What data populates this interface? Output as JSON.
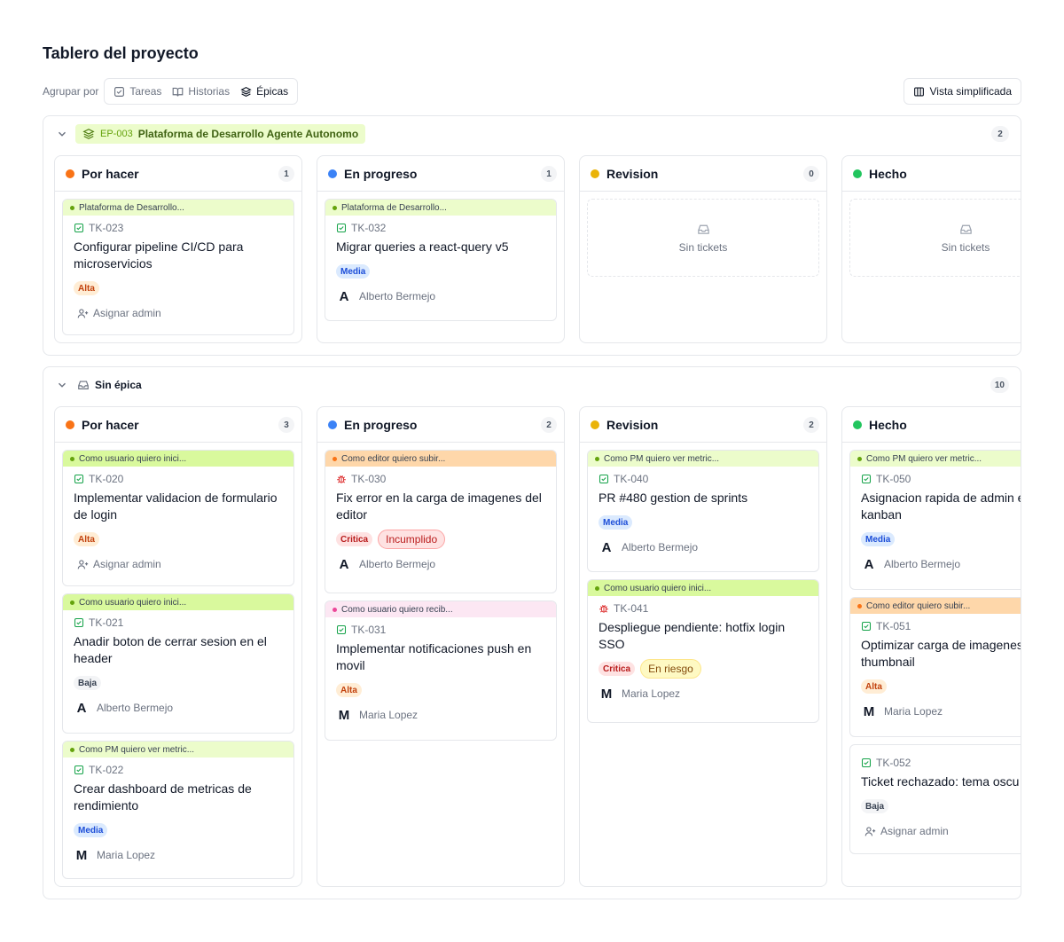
{
  "page": {
    "title": "Tablero del proyecto"
  },
  "toolbar": {
    "group_by_label": "Agrupar por",
    "options": [
      {
        "label": "Tareas",
        "icon": "checkbox-icon"
      },
      {
        "label": "Historias",
        "icon": "book-open-icon"
      },
      {
        "label": "Épicas",
        "icon": "layers-icon",
        "active": true
      }
    ],
    "view_button": "Vista simplificada"
  },
  "groups": [
    {
      "code": "EP-003",
      "name": "Plataforma de Desarrollo Agente Autonomo",
      "count": "2",
      "columns": [
        {
          "name": "Por hacer",
          "count": "1",
          "color": "#f97316",
          "cards": [
            {
              "epic": "Plataforma de Desarrollo...",
              "id": "TK-023",
              "title": [
                "Configurar pipeline CI/CD para",
                "microservicios"
              ],
              "priority": "Alta",
              "assign": "Asignar admin"
            }
          ]
        },
        {
          "name": "En progreso",
          "count": "1",
          "color": "#3b82f6",
          "cards": [
            {
              "epic": "Plataforma de Desarrollo...",
              "id": "TK-032",
              "title": [
                "Migrar queries a react-query v5"
              ],
              "priority": "Media",
              "avatar": "A",
              "assignee": "Alberto Bermejo"
            }
          ]
        },
        {
          "name": "Revision",
          "count": "0",
          "color": "#eab308",
          "empty": "Sin tickets"
        },
        {
          "name": "Hecho",
          "count": "",
          "color": "#22c55e",
          "empty": "Sin tickets"
        }
      ]
    },
    {
      "name": "Sin épica",
      "count": "10",
      "columns": [
        {
          "name": "Por hacer",
          "count": "3",
          "color": "#f97316",
          "cards": [
            {
              "epic": "Como usuario quiero inici...",
              "id": "TK-020",
              "title": [
                "Implementar validacion de formulario",
                "de login"
              ],
              "priority": "Alta",
              "assign": "Asignar admin"
            },
            {
              "epic": "Como usuario quiero inici...",
              "id": "TK-021",
              "title": [
                "Anadir boton de cerrar sesion en el",
                "header"
              ],
              "priority": "Baja",
              "avatar": "A",
              "assignee": "Alberto Bermejo"
            },
            {
              "epic": "Como PM quiero ver metric...",
              "id": "TK-022",
              "title": [
                "Crear dashboard de metricas de",
                "rendimiento"
              ],
              "priority": "Media",
              "avatar": "M",
              "assignee": "Maria Lopez"
            }
          ]
        },
        {
          "name": "En progreso",
          "count": "2",
          "color": "#3b82f6",
          "cards": [
            {
              "epic": "Como editor quiero subir...",
              "id": "TK-030",
              "title": [
                "Fix error en la carga de imagenes del",
                "editor"
              ],
              "priority": "Critica",
              "status": "Incumplido",
              "avatar": "A",
              "assignee": "Alberto Bermejo"
            },
            {
              "epic": "Como usuario quiero recib...",
              "id": "TK-031",
              "title": [
                "Implementar notificaciones push en",
                "movil"
              ],
              "priority": "Alta",
              "avatar": "M",
              "assignee": "Maria Lopez"
            }
          ]
        },
        {
          "name": "Revision",
          "count": "2",
          "color": "#eab308",
          "cards": [
            {
              "epic": "Como PM quiero ver metric...",
              "id": "TK-040",
              "title": [
                "PR #480 gestion de sprints"
              ],
              "priority": "Media",
              "avatar": "A",
              "assignee": "Alberto Bermejo"
            },
            {
              "epic": "Como usuario quiero inici...",
              "id": "TK-041",
              "title": [
                "Despliegue pendiente: hotfix login",
                "SSO"
              ],
              "priority": "Critica",
              "status": "En riesgo",
              "avatar": "M",
              "assignee": "Maria Lopez"
            }
          ]
        },
        {
          "name": "Hecho",
          "count": "",
          "color": "#22c55e",
          "cards": [
            {
              "epic": "Como PM quiero ver metric...",
              "id": "TK-050",
              "title": [
                "Asignacion rapida de admin e",
                "kanban"
              ],
              "priority": "Media",
              "avatar": "A",
              "assignee": "Alberto Bermejo"
            },
            {
              "epic": "Como editor quiero subir...",
              "id": "TK-051",
              "title": [
                "Optimizar carga de imagenes",
                "thumbnail"
              ],
              "priority": "Alta",
              "avatar": "M",
              "assignee": "Maria Lopez"
            },
            {
              "id": "TK-052",
              "title": [
                "Ticket rechazado: tema oscu"
              ],
              "priority": "Baja",
              "assign": "Asignar admin"
            }
          ]
        }
      ]
    }
  ]
}
